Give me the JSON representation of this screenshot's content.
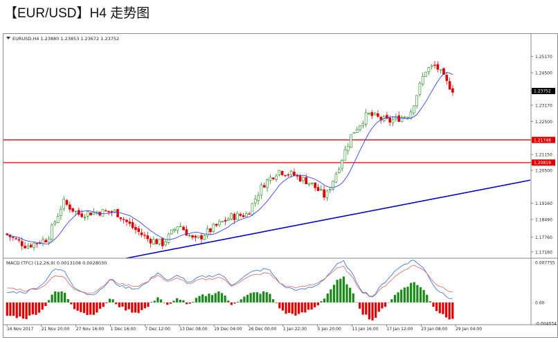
{
  "page": {
    "title": "【EUR/USD】H4 走势图"
  },
  "chart_data": [
    {
      "type": "candlestick",
      "symbol_header": "EURUSD,H4  1.23880 1.23853 1.23672 1.23752",
      "price_ticks": [
        "1.25170",
        "1.24500",
        "1.23752",
        "1.23170",
        "1.22500",
        "1.21748",
        "1.21150",
        "1.20819",
        "1.20500",
        "1.19160",
        "1.18490",
        "1.17760",
        "1.17160"
      ],
      "ylim": [
        1.169,
        1.2575
      ],
      "current_price": 1.23752,
      "horizontal_levels": [
        {
          "label": "1.21748",
          "value": 1.21748,
          "color": "#e00000"
        },
        {
          "label": "1.20819",
          "value": 1.20819,
          "color": "#e00000"
        }
      ],
      "trendline": {
        "color": "#0000cc",
        "from": {
          "x": 0.23,
          "y": 1.169
        },
        "to": {
          "x": 1.0,
          "y": 1.201
        }
      },
      "moving_average_color": "#3344ff",
      "bull_color": "#1a8a1a",
      "bear_color": "#e00000",
      "x_ticks": [
        "16 Nov 2017",
        "21 Nov 20:00",
        "27 Nov 16:00",
        "1 Dec 16:00",
        "7 Dec 12:00",
        "13 Dec 08:00",
        "19 Dec 04:00",
        "26 Dec 00:00",
        "1 Jan 22:30",
        "5 Jan 20:00",
        "11 Jan 16:00",
        "17 Jan 12:00",
        "23 Jan 08:00",
        "29 Jan 04:00"
      ],
      "key_points": [
        {
          "x": 0.0,
          "y": 1.179
        },
        {
          "x": 0.04,
          "y": 1.174
        },
        {
          "x": 0.08,
          "y": 1.177
        },
        {
          "x": 0.11,
          "y": 1.192
        },
        {
          "x": 0.14,
          "y": 1.187
        },
        {
          "x": 0.17,
          "y": 1.188
        },
        {
          "x": 0.21,
          "y": 1.188
        },
        {
          "x": 0.24,
          "y": 1.182
        },
        {
          "x": 0.27,
          "y": 1.177
        },
        {
          "x": 0.3,
          "y": 1.175
        },
        {
          "x": 0.33,
          "y": 1.183
        },
        {
          "x": 0.36,
          "y": 1.176
        },
        {
          "x": 0.4,
          "y": 1.182
        },
        {
          "x": 0.43,
          "y": 1.186
        },
        {
          "x": 0.46,
          "y": 1.187
        },
        {
          "x": 0.49,
          "y": 1.199
        },
        {
          "x": 0.52,
          "y": 1.205
        },
        {
          "x": 0.55,
          "y": 1.203
        },
        {
          "x": 0.58,
          "y": 1.2
        },
        {
          "x": 0.61,
          "y": 1.194
        },
        {
          "x": 0.63,
          "y": 1.204
        },
        {
          "x": 0.66,
          "y": 1.22
        },
        {
          "x": 0.69,
          "y": 1.228
        },
        {
          "x": 0.73,
          "y": 1.225
        },
        {
          "x": 0.77,
          "y": 1.228
        },
        {
          "x": 0.8,
          "y": 1.246
        },
        {
          "x": 0.82,
          "y": 1.248
        },
        {
          "x": 0.84,
          "y": 1.241
        },
        {
          "x": 0.855,
          "y": 1.2375
        }
      ]
    },
    {
      "type": "histogram",
      "header": "MACD (TFC) (12,26,9) 0.0013108 0.0028030",
      "value_ticks": [
        "0.007755",
        "0.00",
        "-0.004034"
      ],
      "ylim": [
        -0.004034,
        0.007755
      ],
      "signal_colors": [
        "#2a6bd8",
        "#e06060"
      ],
      "bar_points": [
        {
          "x": 0.0,
          "y": -0.0025
        },
        {
          "x": 0.04,
          "y": -0.003
        },
        {
          "x": 0.07,
          "y": -0.0015
        },
        {
          "x": 0.09,
          "y": 0.0018
        },
        {
          "x": 0.11,
          "y": 0.0022
        },
        {
          "x": 0.13,
          "y": -0.001
        },
        {
          "x": 0.16,
          "y": -0.0025
        },
        {
          "x": 0.18,
          "y": -0.0015
        },
        {
          "x": 0.2,
          "y": 0.0008
        },
        {
          "x": 0.22,
          "y": -0.001
        },
        {
          "x": 0.25,
          "y": -0.002
        },
        {
          "x": 0.27,
          "y": -0.001
        },
        {
          "x": 0.29,
          "y": 0.0012
        },
        {
          "x": 0.31,
          "y": -0.0008
        },
        {
          "x": 0.33,
          "y": 0.001
        },
        {
          "x": 0.35,
          "y": -0.0006
        },
        {
          "x": 0.37,
          "y": 0.0012
        },
        {
          "x": 0.39,
          "y": 0.0016
        },
        {
          "x": 0.41,
          "y": 0.0022
        },
        {
          "x": 0.43,
          "y": -0.0004
        },
        {
          "x": 0.45,
          "y": 0.0008
        },
        {
          "x": 0.47,
          "y": 0.0018
        },
        {
          "x": 0.5,
          "y": 0.002
        },
        {
          "x": 0.53,
          "y": -0.002
        },
        {
          "x": 0.56,
          "y": -0.0024
        },
        {
          "x": 0.59,
          "y": -0.001
        },
        {
          "x": 0.61,
          "y": 0.0012
        },
        {
          "x": 0.63,
          "y": 0.004
        },
        {
          "x": 0.645,
          "y": 0.0048
        },
        {
          "x": 0.66,
          "y": 0.002
        },
        {
          "x": 0.68,
          "y": -0.002
        },
        {
          "x": 0.7,
          "y": -0.0035
        },
        {
          "x": 0.72,
          "y": -0.001
        },
        {
          "x": 0.74,
          "y": 0.0012
        },
        {
          "x": 0.76,
          "y": 0.003
        },
        {
          "x": 0.78,
          "y": 0.004
        },
        {
          "x": 0.8,
          "y": 0.002
        },
        {
          "x": 0.82,
          "y": -0.0015
        },
        {
          "x": 0.845,
          "y": -0.003
        }
      ]
    }
  ]
}
